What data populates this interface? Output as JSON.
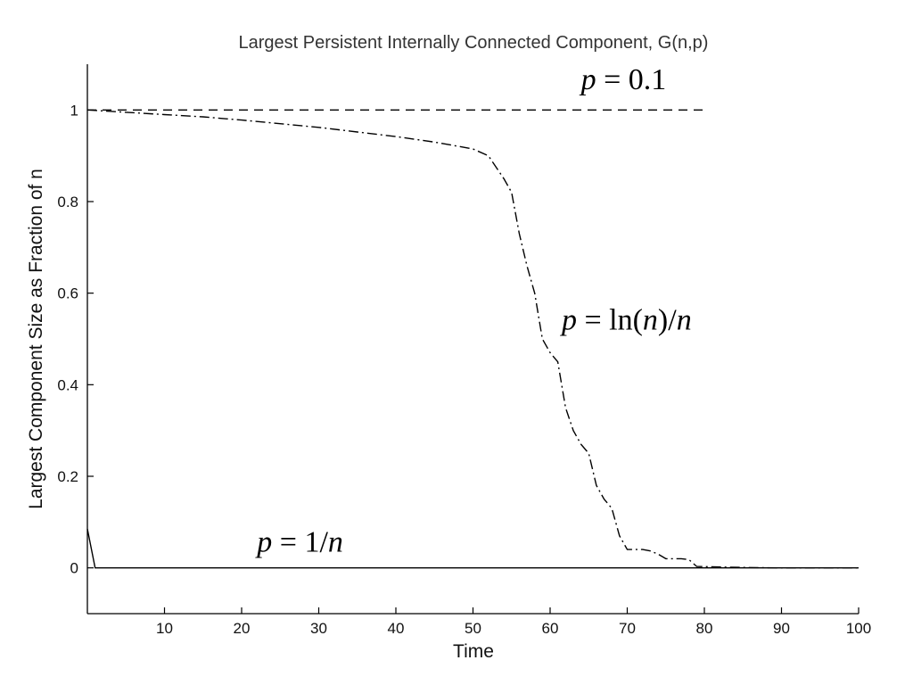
{
  "chart_data": {
    "type": "line",
    "title": "Largest Persistent Internally Connected Component, G(n,p)",
    "xlabel": "Time",
    "ylabel": "Largest Component Size as Fraction of n",
    "xlim": [
      0,
      100
    ],
    "ylim": [
      -0.1,
      1.1
    ],
    "x_ticks": [
      10,
      20,
      30,
      40,
      50,
      60,
      70,
      80,
      90,
      100
    ],
    "y_ticks": [
      0,
      0.2,
      0.4,
      0.6,
      0.8,
      1
    ],
    "y_tick_labels": [
      "0",
      "0.2",
      "0.4",
      "0.6",
      "0.8",
      "1"
    ],
    "grid": false,
    "series": [
      {
        "name": "p = 0.1",
        "style": "dashed",
        "color": "#000000",
        "x": [
          0,
          80
        ],
        "y": [
          1,
          1
        ]
      },
      {
        "name": "p = ln(n)/n",
        "style": "dashdot",
        "color": "#000000",
        "x": [
          0,
          5,
          10,
          15,
          20,
          25,
          30,
          35,
          40,
          45,
          50,
          52,
          54,
          55,
          56,
          57,
          58,
          59,
          60,
          61,
          62,
          63,
          64,
          65,
          66,
          67,
          68,
          69,
          70,
          71,
          72,
          73,
          74,
          75,
          76,
          77,
          78,
          79,
          85,
          90,
          95,
          100
        ],
        "y": [
          1,
          0.995,
          0.99,
          0.985,
          0.978,
          0.97,
          0.962,
          0.952,
          0.942,
          0.93,
          0.915,
          0.9,
          0.85,
          0.82,
          0.73,
          0.66,
          0.6,
          0.5,
          0.47,
          0.45,
          0.35,
          0.3,
          0.27,
          0.25,
          0.18,
          0.15,
          0.13,
          0.07,
          0.04,
          0.04,
          0.04,
          0.037,
          0.03,
          0.02,
          0.02,
          0.02,
          0.018,
          0.003,
          0.001,
          0,
          0,
          0
        ]
      },
      {
        "name": "p = 1/n",
        "style": "solid",
        "color": "#000000",
        "x": [
          0,
          1,
          100
        ],
        "y": [
          0.085,
          0,
          0
        ]
      }
    ],
    "annotations": [
      {
        "parts": [
          {
            "text": "p",
            "italic": true
          },
          {
            "text": " = 0.1",
            "italic": false
          }
        ],
        "x": 64,
        "y": 1.045
      },
      {
        "parts": [
          {
            "text": "p",
            "italic": true
          },
          {
            "text": " = ln(",
            "italic": false
          },
          {
            "text": "n",
            "italic": true
          },
          {
            "text": ")/",
            "italic": false
          },
          {
            "text": "n",
            "italic": true
          }
        ],
        "x": 61.5,
        "y": 0.52
      },
      {
        "parts": [
          {
            "text": "p",
            "italic": true
          },
          {
            "text": " = 1/",
            "italic": false
          },
          {
            "text": "n",
            "italic": true
          }
        ],
        "x": 22,
        "y": 0.035
      }
    ]
  }
}
